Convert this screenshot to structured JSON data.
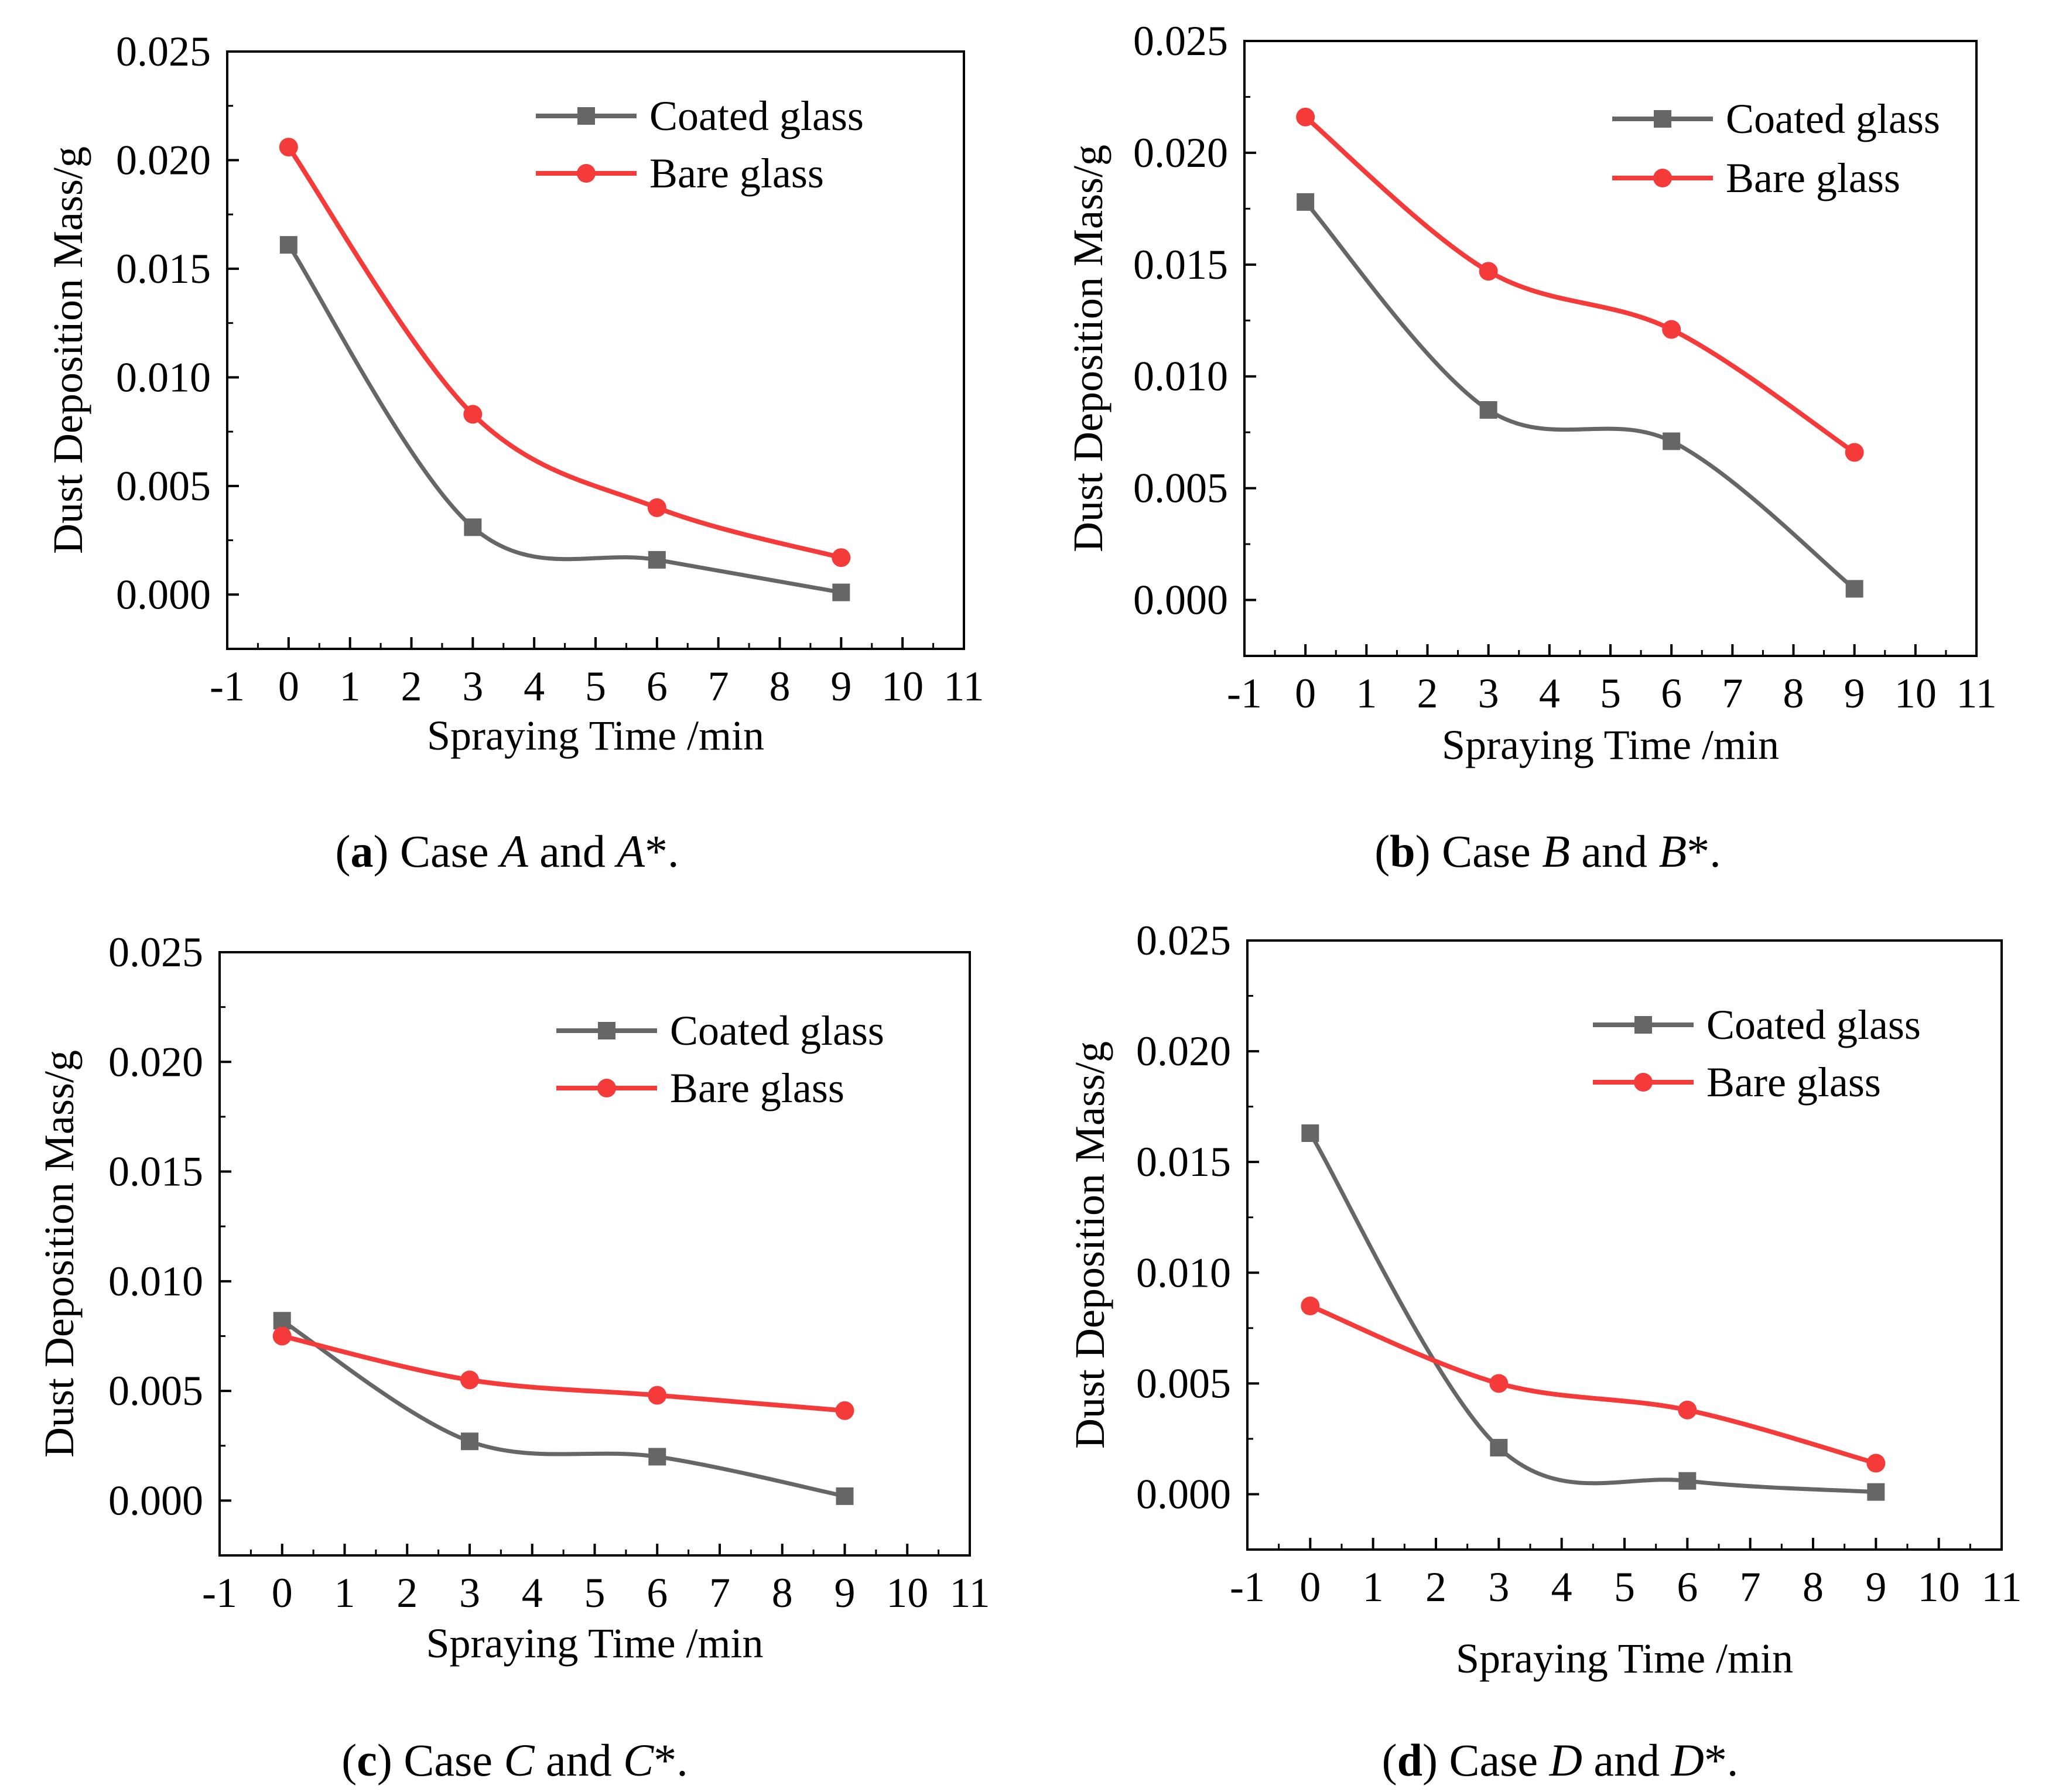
{
  "colors": {
    "coated": "#666666",
    "bare": "#f53a3a",
    "axis": "#000000"
  },
  "chart_data": [
    {
      "id": "a",
      "type": "line",
      "x_label": "Spraying Time /min",
      "y_label": "Dust Deposition Mass/g",
      "xlim": [
        -1,
        11
      ],
      "ylim": [
        -0.0025,
        0.025
      ],
      "x_ticks": [
        -1,
        0,
        1,
        2,
        3,
        4,
        5,
        6,
        7,
        8,
        9,
        10,
        11
      ],
      "x_tick_labels": [
        "-1",
        "0",
        "1",
        "2",
        "3",
        "4",
        "5",
        "6",
        "7",
        "8",
        "9",
        "10",
        "11"
      ],
      "y_ticks": [
        0,
        0.005,
        0.01,
        0.015,
        0.02,
        0.025
      ],
      "y_tick_labels": [
        "0.000",
        "0.005",
        "0.010",
        "0.015",
        "0.020",
        "0.025"
      ],
      "legend_position": "top-right",
      "series": [
        {
          "name": "Coated glass",
          "marker": "square",
          "x": [
            0,
            3,
            6,
            9
          ],
          "values": [
            0.0161,
            0.0031,
            0.0016,
            0.0001
          ]
        },
        {
          "name": "Bare glass",
          "marker": "circle",
          "x": [
            0,
            3,
            6,
            9
          ],
          "values": [
            0.0206,
            0.0083,
            0.004,
            0.0017
          ]
        }
      ],
      "caption": {
        "label": "a",
        "pre": " Case ",
        "v1": "A",
        "mid": " and ",
        "v2": "A",
        "post": "*."
      }
    },
    {
      "id": "b",
      "type": "line",
      "x_label": "Spraying Time /min",
      "y_label": "Dust Deposition Mass/g",
      "xlim": [
        -1,
        11
      ],
      "ylim": [
        -0.0025,
        0.025
      ],
      "x_ticks": [
        -1,
        0,
        1,
        2,
        3,
        4,
        5,
        6,
        7,
        8,
        9,
        10,
        11
      ],
      "x_tick_labels": [
        "-1",
        "0",
        "1",
        "2",
        "3",
        "4",
        "5",
        "6",
        "7",
        "8",
        "9",
        "10",
        "11"
      ],
      "y_ticks": [
        0,
        0.005,
        0.01,
        0.015,
        0.02,
        0.025
      ],
      "y_tick_labels": [
        "0.000",
        "0.005",
        "0.010",
        "0.015",
        "0.020",
        "0.025"
      ],
      "legend_position": "top-right",
      "series": [
        {
          "name": "Coated glass",
          "marker": "square",
          "x": [
            0,
            3,
            6,
            9
          ],
          "values": [
            0.0178,
            0.0085,
            0.0071,
            0.0005
          ]
        },
        {
          "name": "Bare glass",
          "marker": "circle",
          "x": [
            0,
            3,
            6,
            9
          ],
          "values": [
            0.0216,
            0.0147,
            0.0121,
            0.0066
          ]
        }
      ],
      "caption": {
        "label": "b",
        "pre": " Case ",
        "v1": "B",
        "mid": " and ",
        "v2": "B",
        "post": "*."
      }
    },
    {
      "id": "c",
      "type": "line",
      "x_label": "Spraying Time /min",
      "y_label": "Dust Deposition Mass/g",
      "xlim": [
        -1,
        11
      ],
      "ylim": [
        -0.0025,
        0.025
      ],
      "x_ticks": [
        -1,
        0,
        1,
        2,
        3,
        4,
        5,
        6,
        7,
        8,
        9,
        10,
        11
      ],
      "x_tick_labels": [
        "-1",
        "0",
        "1",
        "2",
        "3",
        "4",
        "5",
        "6",
        "7",
        "8",
        "9",
        "10",
        "11"
      ],
      "y_ticks": [
        0,
        0.005,
        0.01,
        0.015,
        0.02,
        0.025
      ],
      "y_tick_labels": [
        "0.000",
        "0.005",
        "0.010",
        "0.015",
        "0.020",
        "0.025"
      ],
      "legend_position": "top-right",
      "series": [
        {
          "name": "Coated glass",
          "marker": "square",
          "x": [
            0,
            3,
            6,
            9
          ],
          "values": [
            0.0082,
            0.0027,
            0.002,
            0.0002
          ]
        },
        {
          "name": "Bare glass",
          "marker": "circle",
          "x": [
            0,
            3,
            6,
            9
          ],
          "values": [
            0.0075,
            0.0055,
            0.0048,
            0.0041
          ]
        }
      ],
      "caption": {
        "label": "c",
        "pre": " Case ",
        "v1": "C",
        "mid": " and ",
        "v2": "C",
        "post": "*."
      }
    },
    {
      "id": "d",
      "type": "line",
      "x_label": "Spraying Time /min",
      "y_label": "Dust Deposition Mass/g",
      "xlim": [
        -1,
        11
      ],
      "ylim": [
        -0.0025,
        0.025
      ],
      "x_ticks": [
        -1,
        0,
        1,
        2,
        3,
        4,
        5,
        6,
        7,
        8,
        9,
        10,
        11
      ],
      "x_tick_labels": [
        "-1",
        "0",
        "1",
        "2",
        "3",
        "4",
        "5",
        "6",
        "7",
        "8",
        "9",
        "10",
        "11"
      ],
      "y_ticks": [
        0,
        0.005,
        0.01,
        0.015,
        0.02,
        0.025
      ],
      "y_tick_labels": [
        "0.000",
        "0.005",
        "0.010",
        "0.015",
        "0.020",
        "0.025"
      ],
      "legend_position": "top-right",
      "series": [
        {
          "name": "Coated glass",
          "marker": "square",
          "x": [
            0,
            3,
            6,
            9
          ],
          "values": [
            0.0163,
            0.0021,
            0.0006,
            0.0001
          ]
        },
        {
          "name": "Bare glass",
          "marker": "circle",
          "x": [
            0,
            3,
            6,
            9
          ],
          "values": [
            0.0085,
            0.005,
            0.0038,
            0.0014
          ]
        }
      ],
      "caption": {
        "label": "d",
        "pre": " Case ",
        "v1": "D",
        "mid": " and ",
        "v2": "D",
        "post": "*."
      }
    }
  ]
}
